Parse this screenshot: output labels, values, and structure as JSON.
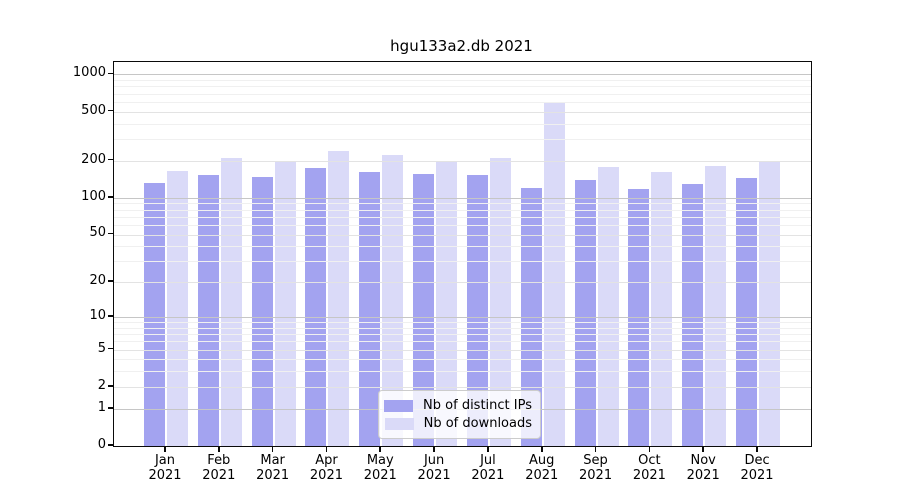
{
  "title": "hgu133a2.db 2021",
  "chart_data": {
    "type": "bar",
    "title": "hgu133a2.db 2021",
    "categories": [
      "Jan",
      "Feb",
      "Mar",
      "Apr",
      "May",
      "Jun",
      "Jul",
      "Aug",
      "Sep",
      "Oct",
      "Nov",
      "Dec"
    ],
    "year_label": "2021",
    "series": [
      {
        "name": "Nb of distinct IPs",
        "color": "#a3a3f0",
        "values": [
          133,
          153,
          147,
          176,
          162,
          157,
          154,
          119,
          139,
          117,
          129,
          144
        ]
      },
      {
        "name": "Nb of downloads",
        "color": "#dadaf8",
        "values": [
          164,
          210,
          200,
          240,
          222,
          197,
          211,
          600,
          178,
          162,
          181,
          196
        ]
      }
    ],
    "xlabel": "",
    "ylabel": "",
    "yscale": "log1p",
    "y_ticks": [
      0,
      1,
      2,
      5,
      10,
      20,
      50,
      100,
      200,
      500,
      1000
    ],
    "ylim": [
      0,
      1260
    ],
    "grid": "horizontal",
    "legend_position": "lower-center-inside"
  },
  "colors": {
    "major_gridline": "#c6c6c6",
    "labeled_gridline": "#e3e3e3",
    "minor_gridline": "#f0f0f0",
    "axis": "#0a0a0a"
  }
}
